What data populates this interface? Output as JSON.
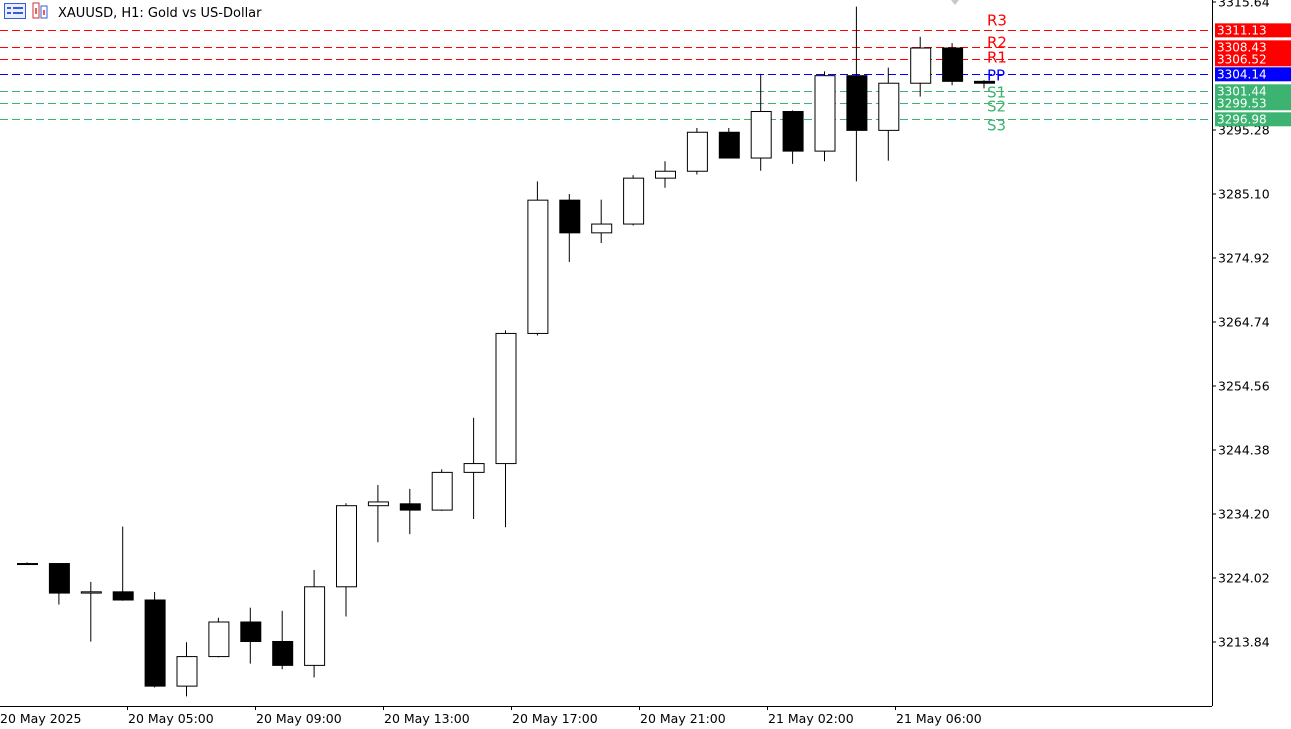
{
  "header": {
    "symbol_text": "XAUUSD, H1:  Gold vs US-Dollar"
  },
  "icons": {
    "menu": "chart-menu-icon",
    "instrument": "instrument-icon"
  },
  "colors": {
    "resistance": "#ff0000",
    "pivot": "#0000ff",
    "support": "#3cb371",
    "bull_body": "#ffffff",
    "bear_body": "#000000",
    "grid_axis": "#000000"
  },
  "chart_data": {
    "type": "candlestick",
    "ylim": [
      3205.7,
      3316.0
    ],
    "y_ticks": [
      "3315.64",
      "3295.28",
      "3285.10",
      "3274.92",
      "3264.74",
      "3254.56",
      "3244.38",
      "3234.20",
      "3224.02",
      "3213.84"
    ],
    "x_ticks": [
      "20 May 2025",
      "20 May 05:00",
      "20 May 09:00",
      "20 May 13:00",
      "20 May 17:00",
      "20 May 21:00",
      "21 May 02:00",
      "21 May 06:00"
    ],
    "candles": [
      {
        "o": 3226.3,
        "h": 3226.5,
        "l": 3226.2,
        "c": 3226.4
      },
      {
        "o": 3226.4,
        "h": 3226.4,
        "l": 3219.8,
        "c": 3221.7
      },
      {
        "o": 3221.7,
        "h": 3223.4,
        "l": 3213.9,
        "c": 3221.9
      },
      {
        "o": 3221.9,
        "h": 3232.2,
        "l": 3220.4,
        "c": 3220.6
      },
      {
        "o": 3220.6,
        "h": 3221.8,
        "l": 3206.6,
        "c": 3206.9
      },
      {
        "o": 3206.9,
        "h": 3213.8,
        "l": 3205.2,
        "c": 3211.6
      },
      {
        "o": 3211.6,
        "h": 3217.7,
        "l": 3211.4,
        "c": 3217.1
      },
      {
        "o": 3217.1,
        "h": 3219.3,
        "l": 3210.4,
        "c": 3214.0
      },
      {
        "o": 3214.0,
        "h": 3218.8,
        "l": 3209.5,
        "c": 3210.2
      },
      {
        "o": 3210.2,
        "h": 3225.3,
        "l": 3208.2,
        "c": 3222.7
      },
      {
        "o": 3222.7,
        "h": 3235.9,
        "l": 3217.9,
        "c": 3235.6
      },
      {
        "o": 3235.6,
        "h": 3238.8,
        "l": 3229.7,
        "c": 3236.2
      },
      {
        "o": 3235.9,
        "h": 3238.2,
        "l": 3231.0,
        "c": 3234.9
      },
      {
        "o": 3234.9,
        "h": 3241.3,
        "l": 3234.7,
        "c": 3240.9
      },
      {
        "o": 3240.9,
        "h": 3249.5,
        "l": 3233.4,
        "c": 3242.3
      },
      {
        "o": 3242.3,
        "h": 3263.4,
        "l": 3232.1,
        "c": 3263.0
      },
      {
        "o": 3263.0,
        "h": 3287.1,
        "l": 3262.6,
        "c": 3284.2
      },
      {
        "o": 3284.2,
        "h": 3285.1,
        "l": 3274.3,
        "c": 3279.0
      },
      {
        "o": 3279.0,
        "h": 3284.2,
        "l": 3277.3,
        "c": 3280.4
      },
      {
        "o": 3280.4,
        "h": 3288.1,
        "l": 3280.1,
        "c": 3287.7
      },
      {
        "o": 3287.7,
        "h": 3290.3,
        "l": 3286.1,
        "c": 3288.8
      },
      {
        "o": 3288.8,
        "h": 3295.6,
        "l": 3288.2,
        "c": 3295.0
      },
      {
        "o": 3295.0,
        "h": 3295.6,
        "l": 3290.8,
        "c": 3290.9
      },
      {
        "o": 3290.9,
        "h": 3304.2,
        "l": 3288.8,
        "c": 3298.3
      },
      {
        "o": 3298.3,
        "h": 3298.4,
        "l": 3289.9,
        "c": 3292.0
      },
      {
        "o": 3292.0,
        "h": 3304.6,
        "l": 3290.3,
        "c": 3304.0
      },
      {
        "o": 3304.0,
        "h": 3314.9,
        "l": 3287.1,
        "c": 3295.3
      },
      {
        "o": 3295.3,
        "h": 3305.2,
        "l": 3290.4,
        "c": 3302.8
      },
      {
        "o": 3302.8,
        "h": 3310.1,
        "l": 3300.6,
        "c": 3308.4
      },
      {
        "o": 3308.4,
        "h": 3309.1,
        "l": 3302.4,
        "c": 3303.1
      },
      {
        "o": 3303.1,
        "h": 3303.2,
        "l": 3301.9,
        "c": 3302.8
      }
    ],
    "levels": [
      {
        "name": "R3",
        "value": 3311.13,
        "label": "3311.13",
        "kind": "resistance"
      },
      {
        "name": "R2",
        "value": 3308.43,
        "label": "3308.43",
        "kind": "resistance"
      },
      {
        "name": "R1",
        "value": 3306.52,
        "label": "3306.52",
        "kind": "resistance"
      },
      {
        "name": "PP",
        "value": 3304.14,
        "label": "3304.14",
        "kind": "pivot"
      },
      {
        "name": "S1",
        "value": 3301.44,
        "label": "3301.44",
        "kind": "support"
      },
      {
        "name": "S2",
        "value": 3299.53,
        "label": "3299.53",
        "kind": "support"
      },
      {
        "name": "S3",
        "value": 3296.98,
        "label": "3296.98",
        "kind": "support"
      }
    ]
  }
}
